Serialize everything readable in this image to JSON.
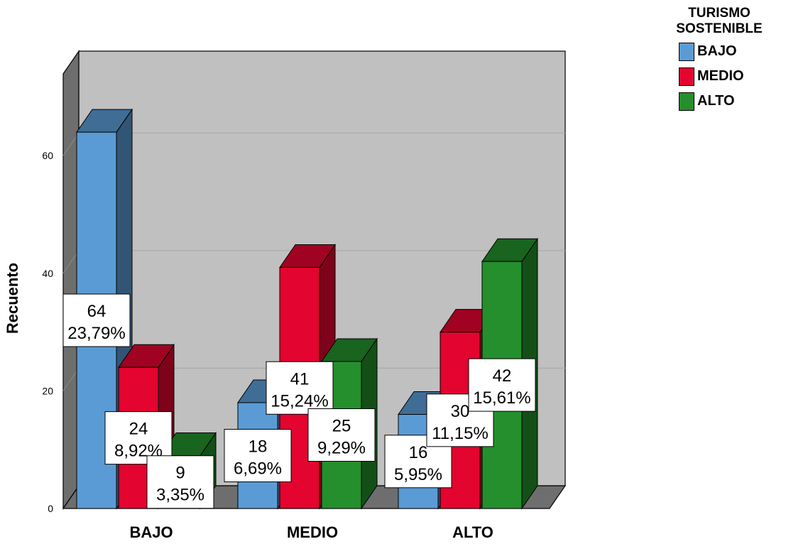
{
  "chart_data": {
    "type": "bar",
    "title": "",
    "xlabel": "",
    "ylabel": "Recuento",
    "ylim": [
      0,
      70
    ],
    "yticks": [
      0,
      20,
      40,
      60
    ],
    "grid": true,
    "legend_position": "top-right",
    "legend_title": "TURISMO SOSTENIBLE",
    "categories": [
      "BAJO",
      "MEDIO",
      "ALTO"
    ],
    "series": [
      {
        "name": "BAJO",
        "color": "#5b9bd5",
        "values": [
          64,
          18,
          16
        ],
        "percent_labels": [
          "23,79%",
          "6,69%",
          "5,95%"
        ]
      },
      {
        "name": "MEDIO",
        "color": "#e3042f",
        "values": [
          24,
          41,
          30
        ],
        "percent_labels": [
          "8,92%",
          "15,24%",
          "11,15%"
        ]
      },
      {
        "name": "ALTO",
        "color": "#248f2c",
        "values": [
          9,
          25,
          42
        ],
        "percent_labels": [
          "3,35%",
          "9,29%",
          "15,61%"
        ]
      }
    ]
  }
}
